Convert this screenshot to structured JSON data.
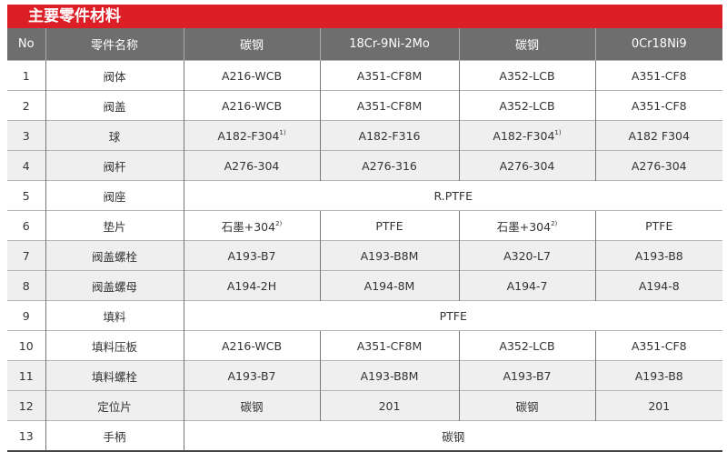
{
  "title": "主要零件材料",
  "headers": [
    "No",
    "零件名称",
    "碳钢",
    "18Cr-9Ni-2Mo",
    "碳钢",
    "0Cr18Ni9"
  ],
  "rows": [
    {
      "no": "1",
      "name": "阀体",
      "cells": [
        "A216-WCB",
        "A351-CF8M",
        "A352-LCB",
        "A351-CF8"
      ],
      "shaded": false
    },
    {
      "no": "2",
      "name": "阀盖",
      "cells": [
        "A216-WCB",
        "A351-CF8M",
        "A352-LCB",
        "A351-CF8"
      ],
      "shaded": false
    },
    {
      "no": "3",
      "name": "球",
      "cells": [
        "A182-F304",
        "A182-F316",
        "A182-F304",
        "A182 F304"
      ],
      "sups": [
        "1)",
        "",
        "1)",
        ""
      ],
      "shaded": true
    },
    {
      "no": "4",
      "name": "阀杆",
      "cells": [
        "A276-304",
        "A276-316",
        "A276-304",
        "A276-304"
      ],
      "shaded": true
    },
    {
      "no": "5",
      "name": "阀座",
      "merged": "R.PTFE",
      "shaded": false
    },
    {
      "no": "6",
      "name": "垫片",
      "cells": [
        "石墨+304",
        "PTFE",
        "石墨+304",
        "PTFE"
      ],
      "sups": [
        "2)",
        "",
        "2)",
        ""
      ],
      "shaded": false
    },
    {
      "no": "7",
      "name": "阀盖螺栓",
      "cells": [
        "A193-B7",
        "A193-B8M",
        "A320-L7",
        "A193-B8"
      ],
      "shaded": true
    },
    {
      "no": "8",
      "name": "阀盖螺母",
      "cells": [
        "A194-2H",
        "A194-8M",
        "A194-7",
        "A194-8"
      ],
      "shaded": true
    },
    {
      "no": "9",
      "name": "填料",
      "merged": "PTFE",
      "shaded": false
    },
    {
      "no": "10",
      "name": "填料压板",
      "cells": [
        "A216-WCB",
        "A351-CF8M",
        "A352-LCB",
        "A351-CF8"
      ],
      "shaded": false
    },
    {
      "no": "11",
      "name": "填料螺栓",
      "cells": [
        "A193-B7",
        "A193-B8M",
        "A193-B7",
        "A193-B8"
      ],
      "shaded": true
    },
    {
      "no": "12",
      "name": "定位片",
      "cells": [
        "碳钢",
        "201",
        "碳钢",
        "201"
      ],
      "shaded": true
    },
    {
      "no": "13",
      "name": "手柄",
      "merged": "碳钢",
      "shaded": false
    }
  ]
}
